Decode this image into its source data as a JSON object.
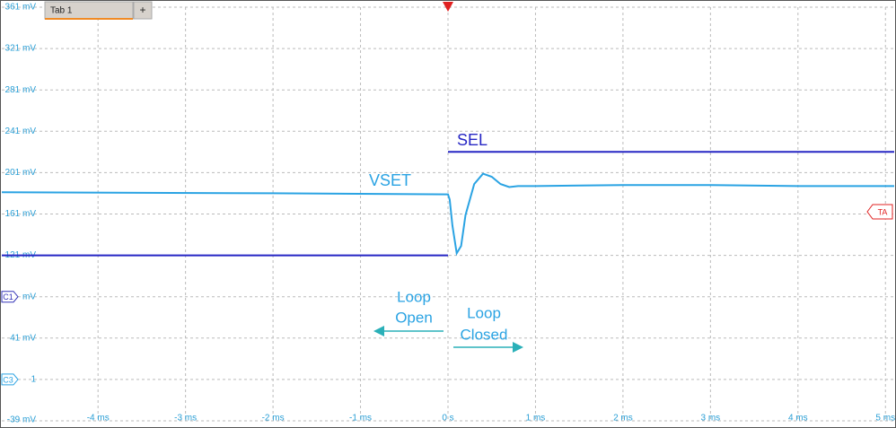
{
  "chart_data": {
    "type": "line",
    "tab": "Tab 1",
    "tab_add": "+",
    "channel_markers": [
      "C1",
      "C3"
    ],
    "trigger_marker": "TA",
    "annotations": {
      "sel": "SEL",
      "vset": "VSET",
      "open": [
        "Loop",
        "Open"
      ],
      "closed": [
        "Loop",
        "Closed"
      ]
    },
    "xlim": [
      -5.1,
      5.1
    ],
    "xticks": [
      {
        "value": -4,
        "label": "-4 ms"
      },
      {
        "value": -3,
        "label": "-3 ms"
      },
      {
        "value": -2,
        "label": "-2 ms"
      },
      {
        "value": -1,
        "label": "-1 ms"
      },
      {
        "value": 0,
        "label": "0 s"
      },
      {
        "value": 1,
        "label": "1 ms"
      },
      {
        "value": 2,
        "label": "2 ms"
      },
      {
        "value": 3,
        "label": "3 ms"
      },
      {
        "value": 4,
        "label": "4 ms"
      },
      {
        "value": 5,
        "label": "5 ms"
      }
    ],
    "ylim": [
      -39,
      361
    ],
    "yticks": [
      {
        "value": 361,
        "label": "361 mV"
      },
      {
        "value": 321,
        "label": "321 mV"
      },
      {
        "value": 281,
        "label": "281 mV"
      },
      {
        "value": 241,
        "label": "241 mV"
      },
      {
        "value": 201,
        "label": "201 mV"
      },
      {
        "value": 161,
        "label": "161 mV"
      },
      {
        "value": 121,
        "label": "121 mV"
      },
      {
        "value": 81,
        "label": "mV"
      },
      {
        "value": 41,
        "label": "41 mV"
      },
      1,
      {
        "value": -39,
        "label": "-39 mV"
      }
    ],
    "grid": true,
    "series": [
      {
        "name": "VSET",
        "color": "#2aa3e3",
        "x": [
          -5.1,
          -2,
          0,
          0.02,
          0.05,
          0.1,
          0.15,
          0.2,
          0.3,
          0.4,
          0.5,
          0.6,
          0.7,
          0.8,
          1,
          2,
          3,
          4,
          5.1
        ],
        "values": [
          182,
          181,
          180,
          175,
          150,
          123,
          130,
          160,
          190,
          200,
          197,
          190,
          187,
          188,
          188,
          189,
          189,
          188,
          188
        ]
      },
      {
        "name": "SEL",
        "color": "#2626c4",
        "x": [
          -5.1,
          0,
          0,
          0,
          5.1
        ],
        "values": [
          121,
          121,
          null,
          221,
          221
        ]
      }
    ]
  }
}
